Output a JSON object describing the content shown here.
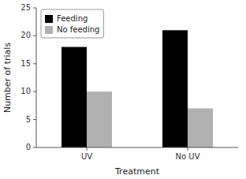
{
  "chart_data": {
    "type": "bar",
    "categories": [
      "UV",
      "No UV"
    ],
    "series": [
      {
        "name": "Feeding",
        "color": "#000000",
        "values": [
          18,
          21
        ]
      },
      {
        "name": "No feeding",
        "color": "#b0b0b0",
        "values": [
          10,
          7
        ]
      }
    ],
    "xlabel": "Treatment",
    "ylabel": "Number of trials",
    "ylim": [
      0,
      25
    ],
    "yticks": [
      0,
      5,
      10,
      15,
      20,
      25
    ],
    "legend": "upper left",
    "grid": false
  }
}
